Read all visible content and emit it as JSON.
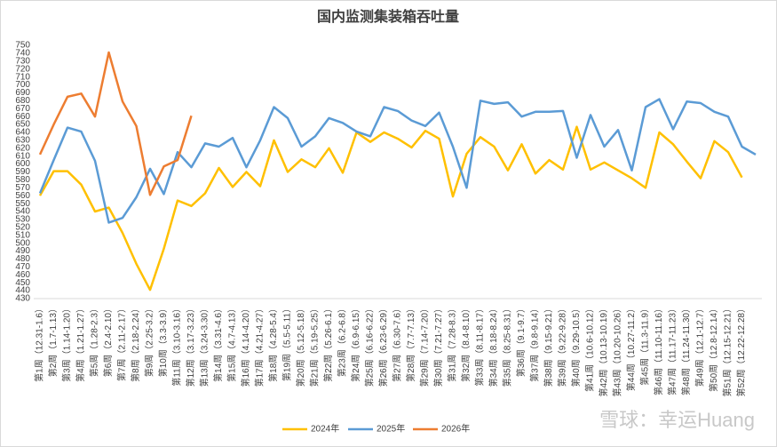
{
  "chart_data": {
    "type": "line",
    "title": "国内监测集装箱吞吐量",
    "categories": [
      "第1周（12.31-1.6）",
      "第2周（1.7-1.13）",
      "第3周（1.14-1.20）",
      "第4周（1.21-1.27）",
      "第5周（1.28-2.3）",
      "第6周（2.4-2.10）",
      "第7周（2.11-2.17）",
      "第8周（2.18-2.24）",
      "第9周（2.25-3.2）",
      "第10周（3.3-3.9）",
      "第11周（3.10-3.16）",
      "第12周（3.17-3.23）",
      "第13周（3.24-3.30）",
      "第14周（3.31-4.6）",
      "第15周（4.7-4.13）",
      "第16周（4.14-4.20）",
      "第17周（4.21-4.27）",
      "第18周（4.28-5.4）",
      "第19周（5.5-5.11）",
      "第20周（5.12-5.18）",
      "第21周（5.19-5.25）",
      "第22周（5.26-6.1）",
      "第23周（6.2-6.8）",
      "第24周（6.9-6.15）",
      "第25周（6.16-6.22）",
      "第26周（6.23-6.29）",
      "第27周（6.30-7.6）",
      "第28周（7.7-7.13）",
      "第29周（7.14-7.20）",
      "第30周（7.21-7.27）",
      "第31周（7.28-8.3）",
      "第32周（8.4-8.10）",
      "第33周（8.11-8.17）",
      "第34周（8.18-8.24）",
      "第35周（8.25-8.31）",
      "第36周（9.1-9.7）",
      "第37周（9.8-9.14）",
      "第38周（9.15-9.21）",
      "第39周（9.22-9.28）",
      "第40周（9.29-10.5）",
      "第41周（10.6-10.12）",
      "第42周（10.13-10.19）",
      "第43周（10.20-10.26）",
      "第44周（10.27-11.2）",
      "第45周（11.3-11.9）",
      "第46周（11.10-11.16）",
      "第47周（11.17-11.23）",
      "第48周（11.24-11.30）",
      "第49周（12.1-12.7）",
      "第50周（12.8-12.14）",
      "第51周（12.15-12.21）",
      "第52周（12.22-12.28）",
      null
    ],
    "series": [
      {
        "name": "2024年",
        "color": "#ffc000",
        "values": [
          560,
          591,
          591,
          574,
          540,
          545,
          513,
          474,
          441,
          493,
          554,
          547,
          563,
          595,
          571,
          590,
          572,
          630,
          590,
          606,
          596,
          620,
          589,
          640,
          628,
          640,
          632,
          621,
          642,
          632,
          559,
          613,
          634,
          622,
          592,
          625,
          588,
          605,
          593,
          647,
          593,
          602,
          592,
          582,
          570,
          640,
          625,
          603,
          582,
          629,
          615,
          583,
          null
        ]
      },
      {
        "name": "2025年",
        "color": "#5b9bd5",
        "values": [
          563,
          605,
          646,
          641,
          604,
          526,
          532,
          558,
          594,
          562,
          615,
          596,
          626,
          622,
          633,
          596,
          630,
          672,
          658,
          622,
          635,
          658,
          652,
          641,
          635,
          672,
          667,
          655,
          648,
          665,
          622,
          570,
          680,
          676,
          678,
          660,
          666,
          666,
          667,
          608,
          662,
          622,
          643,
          592,
          672,
          682,
          644,
          679,
          677,
          666,
          660,
          622,
          612
        ]
      },
      {
        "name": "2026年",
        "color": "#ed7d31",
        "values": [
          612,
          650,
          685,
          689,
          660,
          741,
          679,
          648,
          561,
          597,
          605,
          661,
          null,
          null,
          null,
          null,
          null,
          null,
          null,
          null,
          null,
          null,
          null,
          null,
          null,
          null,
          null,
          null,
          null,
          null,
          null,
          null,
          null,
          null,
          null,
          null,
          null,
          null,
          null,
          null,
          null,
          null,
          null,
          null,
          null,
          null,
          null,
          null,
          null,
          null,
          null,
          null,
          null
        ]
      }
    ],
    "ylim": [
      430,
      750
    ],
    "yticks": [
      430,
      440,
      450,
      460,
      470,
      480,
      490,
      500,
      510,
      520,
      530,
      540,
      550,
      560,
      570,
      580,
      590,
      600,
      610,
      620,
      630,
      640,
      650,
      660,
      670,
      680,
      690,
      700,
      710,
      720,
      730,
      740,
      750
    ],
    "grid": false,
    "legend": "bottom",
    "watermark": "雪球：幸运Huang"
  }
}
